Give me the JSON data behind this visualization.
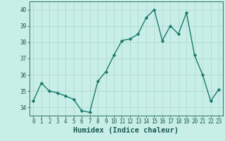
{
  "x": [
    0,
    1,
    2,
    3,
    4,
    5,
    6,
    7,
    8,
    9,
    10,
    11,
    12,
    13,
    14,
    15,
    16,
    17,
    18,
    19,
    20,
    21,
    22,
    23
  ],
  "y": [
    34.4,
    35.5,
    35.0,
    34.9,
    34.7,
    34.5,
    33.8,
    33.7,
    35.6,
    36.2,
    37.2,
    38.1,
    38.2,
    38.5,
    39.5,
    40.0,
    38.1,
    39.0,
    38.5,
    39.8,
    37.2,
    36.0,
    34.4,
    35.1
  ],
  "line_color": "#1a7a6a",
  "marker": "D",
  "marker_size": 2.2,
  "bg_color": "#c8eee8",
  "grid_color": "#aed4cc",
  "xlabel": "Humidex (Indice chaleur)",
  "ylim": [
    33.5,
    40.5
  ],
  "xlim": [
    -0.5,
    23.5
  ],
  "yticks": [
    34,
    35,
    36,
    37,
    38,
    39,
    40
  ],
  "xticks": [
    0,
    1,
    2,
    3,
    4,
    5,
    6,
    7,
    8,
    9,
    10,
    11,
    12,
    13,
    14,
    15,
    16,
    17,
    18,
    19,
    20,
    21,
    22,
    23
  ],
  "tick_label_size": 5.5,
  "xlabel_size": 7.5,
  "line_width": 1.0,
  "tick_color": "#1a5a50"
}
